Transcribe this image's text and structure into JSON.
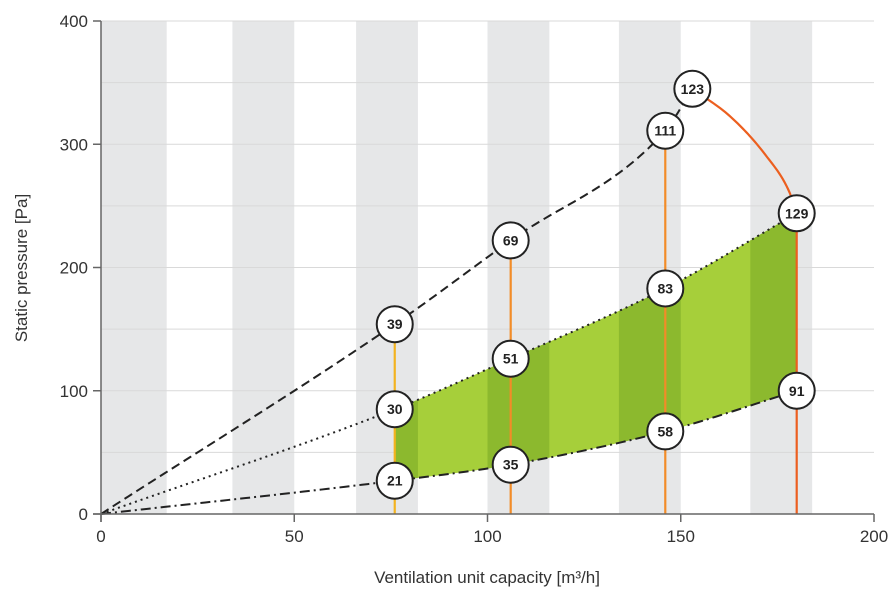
{
  "chart_data": {
    "type": "line",
    "title": "",
    "xlabel": "Ventilation unit capacity [m³/h]",
    "ylabel": "Static pressure [Pa]",
    "xlim": [
      0,
      200
    ],
    "ylim": [
      0,
      400
    ],
    "x_ticks": [
      "0",
      "50",
      "100",
      "150",
      "200"
    ],
    "y_ticks": [
      "0",
      "100",
      "200",
      "300",
      "400"
    ],
    "grid": true,
    "background_bands": [
      [
        0,
        17
      ],
      [
        34,
        50
      ],
      [
        66,
        82
      ],
      [
        100,
        116
      ],
      [
        134,
        150
      ],
      [
        168,
        184
      ]
    ],
    "colors": {
      "fill_light": "#a6cf3a",
      "fill_dark": "#8cb92e",
      "band": "#e6e7e8",
      "grid": "#d9d9d9",
      "axis": "#666666",
      "curve": "#222222",
      "vline_low": "#f3b31f",
      "vline_mid": "#f28c28",
      "vline_high": "#ec5f1f"
    },
    "series": [
      {
        "style": "dashed",
        "x": [
          0,
          76,
          106,
          146,
          153
        ],
        "y": [
          0,
          154,
          222,
          311,
          345
        ]
      },
      {
        "style": "dotted",
        "x": [
          0,
          76,
          106,
          146,
          180
        ],
        "y": [
          0,
          85,
          126,
          183,
          244
        ]
      },
      {
        "style": "dashdot",
        "x": [
          0,
          76,
          106,
          146,
          180
        ],
        "y": [
          0,
          27,
          40,
          67,
          100
        ]
      }
    ],
    "limit_curve": {
      "x": [
        153,
        163,
        172,
        178,
        180
      ],
      "y": [
        345,
        322,
        291,
        262,
        244
      ]
    },
    "vertical_lines": [
      {
        "x": 76,
        "y_from": 0,
        "y_to": 154,
        "level": "low"
      },
      {
        "x": 106,
        "y_from": 0,
        "y_to": 222,
        "level": "mid"
      },
      {
        "x": 146,
        "y_from": 0,
        "y_to": 311,
        "level": "mid"
      },
      {
        "x": 180,
        "y_from": 0,
        "y_to": 244,
        "level": "high"
      }
    ],
    "markers": [
      {
        "x": 76,
        "y": 154,
        "label": "39"
      },
      {
        "x": 106,
        "y": 222,
        "label": "69"
      },
      {
        "x": 146,
        "y": 311,
        "label": "111"
      },
      {
        "x": 153,
        "y": 345,
        "label": "123"
      },
      {
        "x": 76,
        "y": 85,
        "label": "30"
      },
      {
        "x": 106,
        "y": 126,
        "label": "51"
      },
      {
        "x": 146,
        "y": 183,
        "label": "83"
      },
      {
        "x": 180,
        "y": 244,
        "label": "129"
      },
      {
        "x": 76,
        "y": 27,
        "label": "21"
      },
      {
        "x": 106,
        "y": 40,
        "label": "35"
      },
      {
        "x": 146,
        "y": 67,
        "label": "58"
      },
      {
        "x": 180,
        "y": 100,
        "label": "91"
      }
    ]
  }
}
